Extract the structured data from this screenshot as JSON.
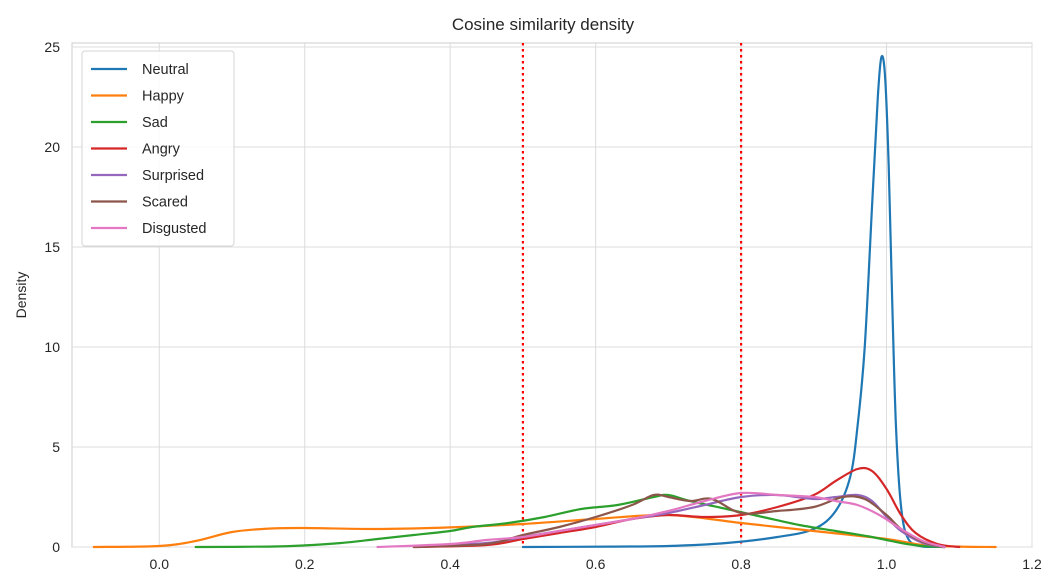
{
  "chart_data": {
    "type": "line",
    "title": "Cosine similarity density",
    "xlabel": "",
    "ylabel": "Density",
    "xlim": [
      -0.12,
      1.2
    ],
    "ylim": [
      0,
      25.2
    ],
    "xticks": [
      0.0,
      0.2,
      0.4,
      0.6,
      0.8,
      1.0,
      1.2
    ],
    "xtick_labels": [
      "0.0",
      "0.2",
      "0.4",
      "0.6",
      "0.8",
      "1.0",
      "1.2"
    ],
    "yticks": [
      0,
      5,
      10,
      15,
      20,
      25
    ],
    "ytick_labels": [
      "0",
      "5",
      "10",
      "15",
      "20",
      "25"
    ],
    "grid": true,
    "legend_position": "top-left",
    "vlines": [
      {
        "x": 0.5,
        "color": "#ff0000",
        "style": "dotted"
      },
      {
        "x": 0.8,
        "color": "#ff0000",
        "style": "dotted"
      }
    ],
    "series": [
      {
        "name": "Neutral",
        "color": "#1f77b4",
        "points": [
          [
            0.5,
            0
          ],
          [
            0.62,
            0.02
          ],
          [
            0.7,
            0.05
          ],
          [
            0.78,
            0.2
          ],
          [
            0.85,
            0.5
          ],
          [
            0.9,
            0.9
          ],
          [
            0.93,
            1.8
          ],
          [
            0.95,
            3.5
          ],
          [
            0.96,
            6
          ],
          [
            0.97,
            10
          ],
          [
            0.98,
            17
          ],
          [
            0.988,
            22.5
          ],
          [
            0.993,
            24.5
          ],
          [
            0.998,
            23.5
          ],
          [
            1.003,
            19
          ],
          [
            1.008,
            12
          ],
          [
            1.013,
            6
          ],
          [
            1.02,
            2
          ],
          [
            1.03,
            0.4
          ],
          [
            1.05,
            0.02
          ],
          [
            1.08,
            0
          ]
        ]
      },
      {
        "name": "Happy",
        "color": "#ff7f0e",
        "points": [
          [
            -0.09,
            0
          ],
          [
            0.0,
            0.05
          ],
          [
            0.05,
            0.3
          ],
          [
            0.1,
            0.75
          ],
          [
            0.15,
            0.92
          ],
          [
            0.2,
            0.95
          ],
          [
            0.3,
            0.9
          ],
          [
            0.4,
            0.98
          ],
          [
            0.5,
            1.15
          ],
          [
            0.6,
            1.4
          ],
          [
            0.7,
            1.6
          ],
          [
            0.8,
            1.2
          ],
          [
            0.9,
            0.8
          ],
          [
            1.0,
            0.4
          ],
          [
            1.05,
            0.1
          ],
          [
            1.1,
            0.02
          ],
          [
            1.15,
            0
          ]
        ]
      },
      {
        "name": "Sad",
        "color": "#2ca02c",
        "points": [
          [
            0.05,
            0
          ],
          [
            0.15,
            0.02
          ],
          [
            0.2,
            0.08
          ],
          [
            0.25,
            0.2
          ],
          [
            0.3,
            0.4
          ],
          [
            0.35,
            0.6
          ],
          [
            0.4,
            0.8
          ],
          [
            0.43,
            1.0
          ],
          [
            0.48,
            1.2
          ],
          [
            0.53,
            1.5
          ],
          [
            0.58,
            1.9
          ],
          [
            0.63,
            2.1
          ],
          [
            0.68,
            2.5
          ],
          [
            0.7,
            2.6
          ],
          [
            0.73,
            2.3
          ],
          [
            0.78,
            1.9
          ],
          [
            0.83,
            1.5
          ],
          [
            0.88,
            1.1
          ],
          [
            0.93,
            0.8
          ],
          [
            0.98,
            0.5
          ],
          [
            1.02,
            0.2
          ],
          [
            1.05,
            0.05
          ],
          [
            1.08,
            0
          ]
        ]
      },
      {
        "name": "Angry",
        "color": "#d62728",
        "points": [
          [
            0.35,
            0
          ],
          [
            0.45,
            0.1
          ],
          [
            0.5,
            0.4
          ],
          [
            0.55,
            0.7
          ],
          [
            0.6,
            1.0
          ],
          [
            0.65,
            1.4
          ],
          [
            0.7,
            1.6
          ],
          [
            0.75,
            1.5
          ],
          [
            0.8,
            1.6
          ],
          [
            0.85,
            2.0
          ],
          [
            0.9,
            2.6
          ],
          [
            0.93,
            3.3
          ],
          [
            0.96,
            3.9
          ],
          [
            0.98,
            3.8
          ],
          [
            1.0,
            2.9
          ],
          [
            1.02,
            1.6
          ],
          [
            1.04,
            0.7
          ],
          [
            1.07,
            0.15
          ],
          [
            1.1,
            0
          ]
        ]
      },
      {
        "name": "Surprised",
        "color": "#9467bd",
        "points": [
          [
            0.35,
            0
          ],
          [
            0.45,
            0.2
          ],
          [
            0.5,
            0.5
          ],
          [
            0.55,
            0.8
          ],
          [
            0.6,
            1.1
          ],
          [
            0.65,
            1.4
          ],
          [
            0.7,
            1.7
          ],
          [
            0.75,
            2.1
          ],
          [
            0.8,
            2.5
          ],
          [
            0.85,
            2.6
          ],
          [
            0.9,
            2.4
          ],
          [
            0.93,
            2.5
          ],
          [
            0.96,
            2.6
          ],
          [
            0.98,
            2.3
          ],
          [
            1.0,
            1.5
          ],
          [
            1.02,
            0.8
          ],
          [
            1.05,
            0.2
          ],
          [
            1.08,
            0
          ]
        ]
      },
      {
        "name": "Scared",
        "color": "#8c564b",
        "points": [
          [
            0.35,
            0
          ],
          [
            0.45,
            0.15
          ],
          [
            0.5,
            0.6
          ],
          [
            0.55,
            1.0
          ],
          [
            0.6,
            1.5
          ],
          [
            0.65,
            2.1
          ],
          [
            0.68,
            2.6
          ],
          [
            0.7,
            2.5
          ],
          [
            0.73,
            2.3
          ],
          [
            0.76,
            2.4
          ],
          [
            0.8,
            1.7
          ],
          [
            0.85,
            1.8
          ],
          [
            0.9,
            2.0
          ],
          [
            0.94,
            2.5
          ],
          [
            0.97,
            2.4
          ],
          [
            1.0,
            1.6
          ],
          [
            1.02,
            0.9
          ],
          [
            1.05,
            0.25
          ],
          [
            1.08,
            0
          ]
        ]
      },
      {
        "name": "Disgusted",
        "color": "#e377c2",
        "points": [
          [
            0.3,
            0
          ],
          [
            0.4,
            0.15
          ],
          [
            0.45,
            0.35
          ],
          [
            0.5,
            0.5
          ],
          [
            0.55,
            0.8
          ],
          [
            0.6,
            1.1
          ],
          [
            0.65,
            1.4
          ],
          [
            0.7,
            1.8
          ],
          [
            0.75,
            2.3
          ],
          [
            0.8,
            2.7
          ],
          [
            0.85,
            2.6
          ],
          [
            0.9,
            2.5
          ],
          [
            0.93,
            2.3
          ],
          [
            0.96,
            2.1
          ],
          [
            0.99,
            1.6
          ],
          [
            1.02,
            0.9
          ],
          [
            1.05,
            0.3
          ],
          [
            1.08,
            0
          ]
        ]
      }
    ]
  }
}
